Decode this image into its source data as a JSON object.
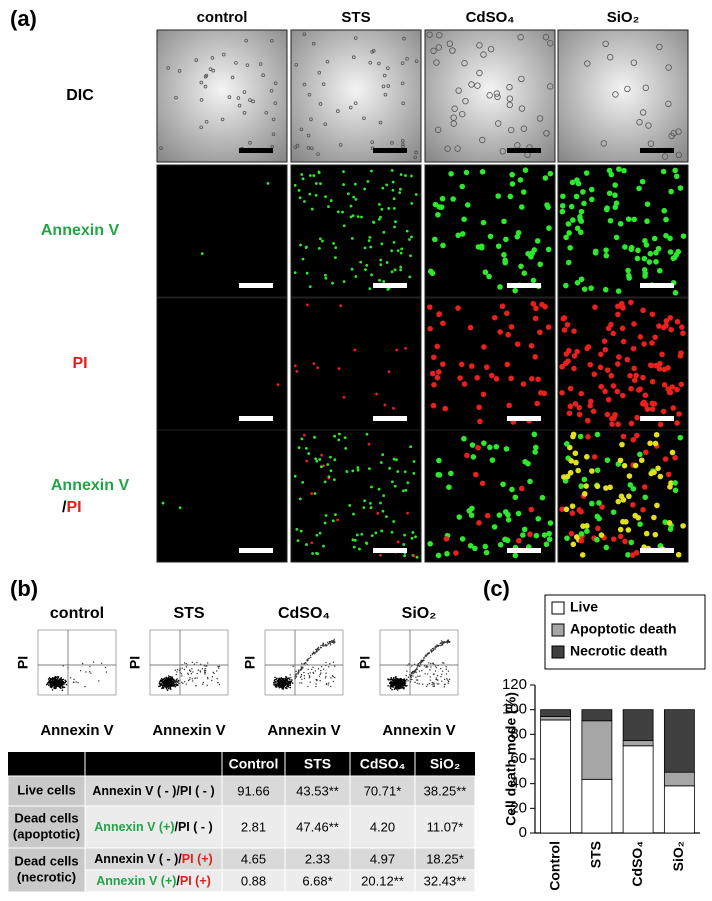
{
  "panel_a": {
    "label": "(a)",
    "columns": [
      "control",
      "STS",
      "CdSO₄",
      "SiO₂"
    ],
    "rows": [
      [
        {
          "text": "DIC",
          "color": "#000000"
        }
      ],
      [
        {
          "text": "Annexin V",
          "color": "#22a447"
        }
      ],
      [
        {
          "text": "PI",
          "color": "#e0201b"
        }
      ],
      [
        {
          "text": "Annexin V",
          "color": "#22a447"
        },
        {
          "text": "/",
          "color": "#000000"
        },
        {
          "text": "PI",
          "color": "#e0201b"
        }
      ]
    ]
  },
  "panel_b": {
    "label": "(b)",
    "plots": [
      {
        "title": "control",
        "y_label": "PI",
        "x_label": "Annexin V"
      },
      {
        "title": "STS",
        "y_label": "PI",
        "x_label": "Annexin V"
      },
      {
        "title": "CdSO₄",
        "y_label": "PI",
        "x_label": "Annexin V"
      },
      {
        "title": "SiO₂",
        "y_label": "PI",
        "x_label": "Annexin V"
      }
    ]
  },
  "table": {
    "header": [
      "Control",
      "STS",
      "CdSO₄",
      "SiO₂"
    ],
    "groups": [
      {
        "name": [
          "Live cells"
        ],
        "rows": [
          {
            "marker": [
              {
                "text": "Annexin V ( - )/PI ( - )",
                "color": "#000000"
              }
            ],
            "cells": [
              "91.66",
              "43.53**",
              "70.71*",
              "38.25**"
            ]
          }
        ]
      },
      {
        "name": [
          "Dead cells",
          "(apoptotic)"
        ],
        "rows": [
          {
            "marker": [
              {
                "text": "Annexin V (+)",
                "color": "#22a447"
              },
              {
                "text": "/PI ( - )",
                "color": "#000000"
              }
            ],
            "cells": [
              "2.81",
              "47.46**",
              "4.20",
              "11.07*"
            ]
          }
        ]
      },
      {
        "name": [
          "Dead cells",
          "(necrotic)"
        ],
        "rows": [
          {
            "marker": [
              {
                "text": "Annexin V ( - )/",
                "color": "#000000"
              },
              {
                "text": "PI (+)",
                "color": "#e0201b"
              }
            ],
            "cells": [
              "4.65",
              "2.33",
              "4.97",
              "18.25*"
            ]
          },
          {
            "marker": [
              {
                "text": "Annexin V (+)",
                "color": "#22a447"
              },
              {
                "text": "/",
                "color": "#000000"
              },
              {
                "text": "PI (+)",
                "color": "#e0201b"
              }
            ],
            "cells": [
              "0.88",
              "6.68*",
              "20.12**",
              "32.43**"
            ]
          }
        ]
      }
    ]
  },
  "panel_c": {
    "label": "(c)"
  },
  "chart_data": {
    "type": "stacked_bar",
    "y_label": "Cell death mode (%)",
    "categories": [
      "Control",
      "STS",
      "CdSO₄",
      "SiO₂"
    ],
    "series": [
      {
        "name": "Live",
        "color": "#ffffff",
        "values": [
          91.66,
          43.53,
          70.71,
          38.25
        ]
      },
      {
        "name": "Apoptotic death",
        "color": "#a6a6a6",
        "values": [
          2.81,
          47.46,
          4.2,
          11.07
        ]
      },
      {
        "name": "Necrotic death",
        "color": "#404040",
        "values": [
          5.53,
          9.01,
          25.09,
          50.68
        ]
      }
    ],
    "ylim": [
      0,
      120
    ],
    "yticks": [
      0,
      20,
      40,
      60,
      80,
      100,
      120
    ],
    "legend": "top"
  }
}
